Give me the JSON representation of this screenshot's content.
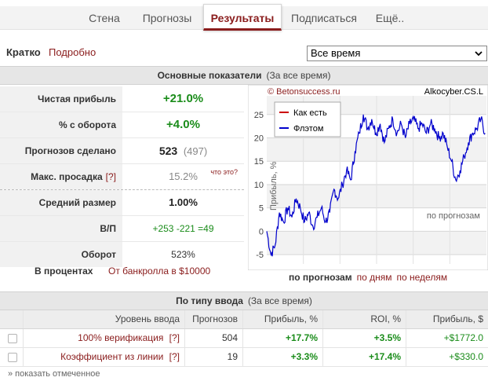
{
  "nav": {
    "tabs": [
      {
        "label": "Стена"
      },
      {
        "label": "Прогнозы"
      },
      {
        "label": "Результаты",
        "active": true
      },
      {
        "label": "Подписаться"
      },
      {
        "label": "Ещё.."
      }
    ]
  },
  "mode": {
    "brief": "Кратко",
    "detail": "Подробно"
  },
  "period": {
    "selected": "Все время"
  },
  "main_stats": {
    "title": "Основные показатели",
    "subtitle": "(За все время)",
    "rows": [
      {
        "label": "Чистая прибыль",
        "value": "+21.0%"
      },
      {
        "label": "% с оборота",
        "value": "+4.0%"
      },
      {
        "label": "Прогнозов сделано",
        "value": "523",
        "extra": "(497)"
      },
      {
        "label": "Макс. просадка",
        "help": "[?]",
        "value": "15.2%",
        "hint": "что это?"
      },
      {
        "label": "Средний размер",
        "value": "1.00%"
      },
      {
        "label": "В/П",
        "value": "+253 -221 =49"
      },
      {
        "label": "Оборот",
        "value": "523%"
      }
    ],
    "percent_label": "В процентах",
    "bankroll_link": "От банкролла в $10000"
  },
  "chart_data": {
    "type": "line",
    "watermark_left": "© Betonsuccess.ru",
    "watermark_right": "Alkocyber.CS.L",
    "ylabel": "Прибыль, %",
    "xlabel": "по прогнозам",
    "ylim": [
      -7,
      29
    ],
    "xlim": [
      0,
      523
    ],
    "yticks": [
      -5,
      0,
      5,
      10,
      15,
      20,
      25
    ],
    "grid": true,
    "legend_position": "top-left",
    "series": [
      {
        "name": "Как есть",
        "color": "#cc0000",
        "values": []
      },
      {
        "name": "Флэтом",
        "color": "#0000cc",
        "x": [
          0,
          10,
          20,
          30,
          40,
          50,
          60,
          70,
          80,
          90,
          100,
          110,
          120,
          130,
          140,
          150,
          160,
          170,
          180,
          190,
          200,
          210,
          220,
          230,
          240,
          250,
          260,
          270,
          280,
          290,
          300,
          310,
          320,
          330,
          340,
          350,
          360,
          370,
          380,
          390,
          400,
          410,
          420,
          430,
          440,
          450,
          460,
          470,
          480,
          490,
          500,
          510,
          520
        ],
        "values": [
          0,
          -5,
          -3,
          4,
          2,
          5,
          3,
          7,
          5,
          2,
          4,
          1,
          3,
          5,
          2,
          4,
          9,
          7,
          10,
          13,
          11,
          17,
          21,
          25,
          22,
          24,
          21,
          23,
          19,
          22,
          24,
          21,
          23,
          20,
          23,
          24,
          22,
          23,
          21,
          23,
          22,
          20,
          21,
          18,
          15,
          11,
          13,
          16,
          19,
          21,
          22,
          24,
          21
        ]
      }
    ]
  },
  "chart_links": {
    "current": "по прогнозам",
    "by_days": "по дням",
    "by_weeks": "по неделям"
  },
  "type_table": {
    "title": "По типу ввода",
    "subtitle": "(За все время)",
    "headers": [
      "Уровень ввода",
      "Прогнозов",
      "Прибыль, %",
      "ROI, %",
      "Прибыль, $"
    ],
    "rows": [
      {
        "name": "100% верификация",
        "help": "[?]",
        "count": "504",
        "profit_pct": "+17.7%",
        "roi": "+3.5%",
        "profit_usd": "+$1772.0"
      },
      {
        "name": "Коэффициент из линии",
        "help": "[?]",
        "count": "19",
        "profit_pct": "+3.3%",
        "roi": "+17.4%",
        "profit_usd": "+$330.0"
      }
    ],
    "show_marked": "» показать отмеченное"
  }
}
